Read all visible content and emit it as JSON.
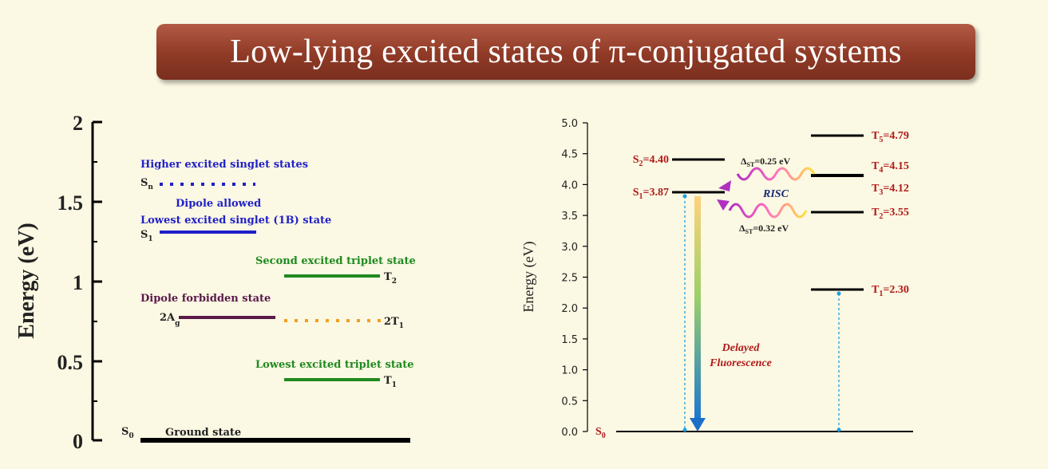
{
  "title": "Low-lying excited states of  π-conjugated systems",
  "colors": {
    "background": "#fbf8e3",
    "banner": "#8f3a26",
    "blue": "#1f1fc8",
    "green": "#1f8a1f",
    "purple": "#5a1a4a",
    "orange": "#f0a020",
    "red": "#b01a1a",
    "black": "#000000"
  },
  "left_diagram": {
    "axis_label": "Energy (eV)",
    "ticks": [
      "2",
      "1.5",
      "1",
      "0.5",
      "0"
    ],
    "labels": {
      "higher_singlets": "Higher excited singlet states",
      "sn": "S",
      "sn_sub": "n",
      "dipole_allowed": "Dipole allowed",
      "lowest_singlet": "Lowest excited singlet (1B) state",
      "s1": "S",
      "s1_sub": "1",
      "second_triplet": "Second excited triplet state",
      "t2": "T",
      "t2_sub": "2",
      "dipole_forbidden": "Dipole forbidden state",
      "two_ag": "2A",
      "two_ag_sub": "g",
      "two_t1": "2T",
      "two_t1_sub": "1",
      "lowest_triplet": "Lowest excited triplet state",
      "t1": "T",
      "t1_sub": "1",
      "s0": "S",
      "s0_sub": "0",
      "ground": "Ground state"
    }
  },
  "right_diagram": {
    "axis_label": "Energy (eV)",
    "ticks": [
      "5.0",
      "4.5",
      "4.0",
      "3.5",
      "3.0",
      "2.5",
      "2.0",
      "1.5",
      "1.0",
      "0.5",
      "0.0"
    ],
    "levels": {
      "s2": {
        "pre": "S",
        "sub": "2",
        "post": "=4.40"
      },
      "s1": {
        "pre": "S",
        "sub": "1",
        "post": "=3.87"
      },
      "t5": {
        "pre": "T",
        "sub": "5",
        "post": "=4.79"
      },
      "t4": {
        "pre": "T",
        "sub": "4",
        "post": "=4.15"
      },
      "t3": {
        "pre": "T",
        "sub": "3",
        "post": "=4.12"
      },
      "t2": {
        "pre": "T",
        "sub": "2",
        "post": "=3.55"
      },
      "t1": {
        "pre": "T",
        "sub": "1",
        "post": "=2.30"
      },
      "s0": {
        "pre": "S",
        "sub": "0",
        "post": ""
      }
    },
    "delta_upper": {
      "pre": "Δ",
      "sub": "ST",
      "post": "=0.25 eV"
    },
    "delta_lower": {
      "pre": "Δ",
      "sub": "ST",
      "post": "=0.32 eV"
    },
    "risc": "RISC",
    "delayed": "Delayed",
    "fluorescence": "Fluorescence"
  }
}
